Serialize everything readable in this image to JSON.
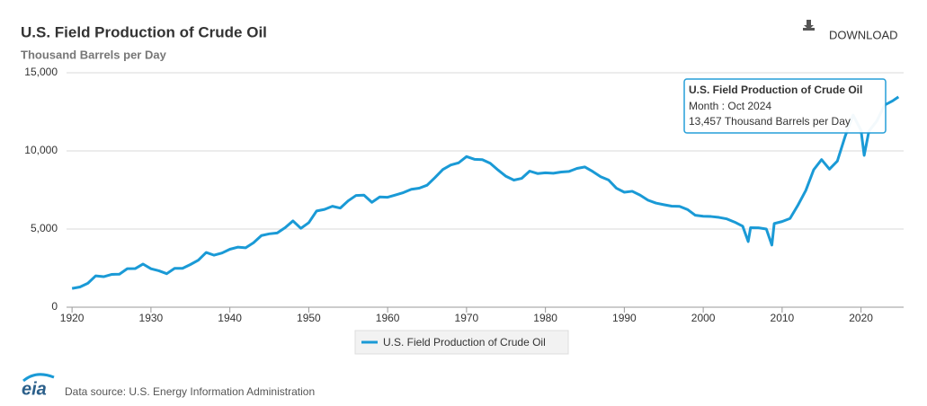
{
  "chart_data": {
    "type": "line",
    "title": "U.S. Field Production of Crude Oil",
    "subtitle": "Thousand Barrels per Day",
    "download": "DOWNLOAD",
    "source": "Data source: U.S. Energy Information Administration",
    "logo": "eia",
    "tooltip": {
      "title": "U.S. Field Production of Crude Oil",
      "x_label": "Month : Oct 2024",
      "value_label": "13,457 Thousand Barrels per Day"
    },
    "x": [
      1920,
      1921,
      1922,
      1923,
      1924,
      1925,
      1926,
      1927,
      1928,
      1929,
      1930,
      1931,
      1932,
      1933,
      1934,
      1935,
      1936,
      1937,
      1938,
      1939,
      1940,
      1941,
      1942,
      1943,
      1944,
      1945,
      1946,
      1947,
      1948,
      1949,
      1950,
      1951,
      1952,
      1953,
      1954,
      1955,
      1956,
      1957,
      1958,
      1959,
      1960,
      1961,
      1962,
      1963,
      1964,
      1965,
      1966,
      1967,
      1968,
      1969,
      1970,
      1971,
      1972,
      1973,
      1974,
      1975,
      1976,
      1977,
      1978,
      1979,
      1980,
      1981,
      1982,
      1983,
      1984,
      1985,
      1986,
      1987,
      1988,
      1989,
      1990,
      1991,
      1992,
      1993,
      1994,
      1995,
      1996,
      1997,
      1998,
      1999,
      2000,
      2001,
      2002,
      2003,
      2004,
      2005,
      2005.7,
      2006,
      2007,
      2008,
      2008.7,
      2009,
      2010,
      2011,
      2012,
      2013,
      2014,
      2015,
      2016,
      2017,
      2018,
      2019,
      2020,
      2020.4,
      2021,
      2022,
      2023,
      2024,
      2024.75
    ],
    "series": [
      {
        "name": "U.S. Field Production of Crude Oil",
        "color": "#1a9ad6",
        "values": [
          1201,
          1294,
          1531,
          2007,
          1951,
          2097,
          2114,
          2466,
          2469,
          2760,
          2460,
          2332,
          2145,
          2488,
          2484,
          2730,
          3004,
          3500,
          3327,
          3466,
          3707,
          3842,
          3799,
          4125,
          4584,
          4695,
          4751,
          5088,
          5520,
          5046,
          5407,
          6158,
          6256,
          6458,
          6342,
          6807,
          7151,
          7170,
          6710,
          7054,
          7035,
          7183,
          7332,
          7542,
          7614,
          7804,
          8295,
          8810,
          9096,
          9238,
          9637,
          9463,
          9441,
          9208,
          8774,
          8375,
          8132,
          8245,
          8707,
          8552,
          8597,
          8572,
          8649,
          8688,
          8879,
          8971,
          8680,
          8349,
          8140,
          7613,
          7355,
          7417,
          7171,
          6847,
          6662,
          6560,
          6465,
          6452,
          6252,
          5881,
          5822,
          5801,
          5744,
          5649,
          5441,
          5184,
          4200,
          5086,
          5077,
          5000,
          3974,
          5353,
          5482,
          5674,
          6523,
          7467,
          8793,
          9442,
          8832,
          9352,
          10953,
          12289,
          11318,
          9713,
          11261,
          11911,
          12935,
          13200,
          13457
        ]
      }
    ],
    "xlim": [
      1919.3,
      2025.4
    ],
    "xticks": [
      1920,
      1930,
      1940,
      1950,
      1960,
      1970,
      1980,
      1990,
      2000,
      2010,
      2020
    ],
    "ylim": [
      0,
      15000
    ],
    "yticks": [
      0,
      {
        "value": 5000,
        "label": "5,000"
      },
      {
        "value": 10000,
        "label": "10,000"
      },
      {
        "value": 15000,
        "label": "15,000"
      }
    ],
    "grid": true
  }
}
